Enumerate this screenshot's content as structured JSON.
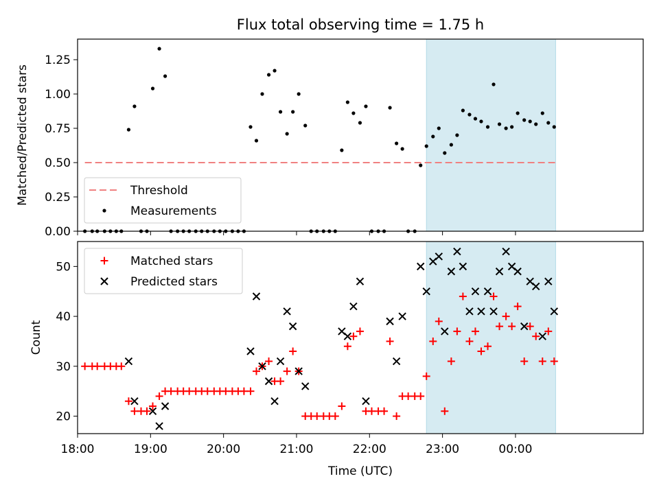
{
  "figure": {
    "title": "Flux total observing time = 1.75 h",
    "xlabel": "Time (UTC)",
    "highlight_color": "#add8e6"
  },
  "chart_data": [
    {
      "type": "scatter",
      "ylabel": "Matched/Predicted stars",
      "ylim": [
        0,
        1.4
      ],
      "yticks": [
        "0.00",
        "0.25",
        "0.50",
        "0.75",
        "1.00",
        "1.25"
      ],
      "ytick_values": [
        0,
        0.25,
        0.5,
        0.75,
        1.0,
        1.25
      ],
      "xlim": [
        18.0,
        25.75
      ],
      "legend_position": "lower-left",
      "threshold": {
        "name": "Threshold",
        "value": 0.5,
        "x": [
          18.1,
          24.55
        ],
        "color": "#f08080"
      },
      "series": [
        {
          "name": "Measurements",
          "color": "#000000",
          "x": [
            18.1,
            18.2,
            18.27,
            18.37,
            18.45,
            18.53,
            18.6,
            18.7,
            18.78,
            18.87,
            18.95,
            19.03,
            19.12,
            19.2,
            19.28,
            19.37,
            19.45,
            19.53,
            19.62,
            19.7,
            19.78,
            19.87,
            19.95,
            20.03,
            20.12,
            20.2,
            20.28,
            20.37,
            20.45,
            20.53,
            20.62,
            20.7,
            20.78,
            20.87,
            20.95,
            21.03,
            21.12,
            21.2,
            21.28,
            21.37,
            21.45,
            21.53,
            21.62,
            21.7,
            21.78,
            21.87,
            21.95,
            22.03,
            22.12,
            22.2,
            22.28,
            22.37,
            22.45,
            22.53,
            22.62,
            22.7,
            22.78,
            22.87,
            22.95,
            23.03,
            23.12,
            23.2,
            23.28,
            23.37,
            23.45,
            23.53,
            23.62,
            23.7,
            23.78,
            23.87,
            23.95,
            24.03,
            24.12,
            24.2,
            24.28,
            24.37,
            24.45,
            24.53
          ],
          "y": [
            0,
            0,
            0,
            0,
            0,
            0,
            0,
            0.74,
            0.91,
            0,
            0,
            1.04,
            1.33,
            1.13,
            0,
            0,
            0,
            0,
            0,
            0,
            0,
            0,
            0,
            0,
            0,
            0,
            0,
            0.76,
            0.66,
            1.0,
            1.14,
            1.17,
            0.87,
            0.71,
            0.87,
            1.0,
            0.77,
            0,
            0,
            0,
            0,
            0,
            0.59,
            0.94,
            0.86,
            0.79,
            0.91,
            0,
            0,
            0,
            0.9,
            0.64,
            0.6,
            0,
            0,
            0.48,
            0.62,
            0.69,
            0.75,
            0.57,
            0.63,
            0.7,
            0.88,
            0.85,
            0.82,
            0.8,
            0.76,
            1.07,
            0.78,
            0.75,
            0.76,
            0.86,
            0.81,
            0.8,
            0.78,
            0.86,
            0.79,
            0.76
          ]
        }
      ]
    },
    {
      "type": "scatter",
      "ylabel": "Count",
      "ylim": [
        16.5,
        55
      ],
      "yticks": [
        "20",
        "30",
        "40",
        "50"
      ],
      "ytick_values": [
        20,
        30,
        40,
        50
      ],
      "xlim": [
        18.0,
        25.75
      ],
      "xticks": [
        "18:00",
        "19:00",
        "20:00",
        "21:00",
        "22:00",
        "23:00",
        "00:00"
      ],
      "xtick_values": [
        18,
        19,
        20,
        21,
        22,
        23,
        24
      ],
      "legend_position": "upper-left",
      "series": [
        {
          "name": "Matched stars",
          "marker": "plus",
          "color": "#ff0000",
          "x": [
            18.1,
            18.2,
            18.27,
            18.37,
            18.45,
            18.53,
            18.6,
            18.7,
            18.78,
            18.87,
            18.95,
            19.03,
            19.12,
            19.2,
            19.28,
            19.37,
            19.45,
            19.53,
            19.62,
            19.7,
            19.78,
            19.87,
            19.95,
            20.03,
            20.12,
            20.2,
            20.28,
            20.37,
            20.45,
            20.53,
            20.62,
            20.7,
            20.78,
            20.87,
            20.95,
            21.03,
            21.12,
            21.2,
            21.28,
            21.37,
            21.45,
            21.53,
            21.62,
            21.7,
            21.78,
            21.87,
            21.95,
            22.03,
            22.12,
            22.2,
            22.28,
            22.37,
            22.45,
            22.53,
            22.62,
            22.7,
            22.78,
            22.87,
            22.95,
            23.03,
            23.12,
            23.2,
            23.28,
            23.37,
            23.45,
            23.53,
            23.62,
            23.7,
            23.78,
            23.87,
            23.95,
            24.03,
            24.12,
            24.2,
            24.28,
            24.37,
            24.45,
            24.53
          ],
          "y": [
            30,
            30,
            30,
            30,
            30,
            30,
            30,
            23,
            21,
            21,
            21,
            22,
            24,
            25,
            25,
            25,
            25,
            25,
            25,
            25,
            25,
            25,
            25,
            25,
            25,
            25,
            25,
            25,
            29,
            30,
            31,
            27,
            27,
            29,
            33,
            29,
            20,
            20,
            20,
            20,
            20,
            20,
            22,
            34,
            36,
            37,
            21,
            21,
            21,
            21,
            35,
            20,
            24,
            24,
            24,
            24,
            28,
            35,
            39,
            21,
            31,
            37,
            44,
            35,
            37,
            33,
            34,
            44,
            38,
            40,
            38,
            42,
            31,
            38,
            36,
            31,
            37,
            31
          ]
        },
        {
          "name": "Predicted stars",
          "marker": "x",
          "color": "#000000",
          "x": [
            18.7,
            18.78,
            19.03,
            19.12,
            19.2,
            20.37,
            20.45,
            20.53,
            20.62,
            20.7,
            20.78,
            20.87,
            20.95,
            21.03,
            21.12,
            21.62,
            21.7,
            21.78,
            21.87,
            21.95,
            22.28,
            22.37,
            22.45,
            22.7,
            22.78,
            22.87,
            22.95,
            23.03,
            23.12,
            23.2,
            23.28,
            23.37,
            23.45,
            23.53,
            23.62,
            23.7,
            23.78,
            23.87,
            23.95,
            24.03,
            24.12,
            24.2,
            24.28,
            24.37,
            24.45,
            24.53
          ],
          "y": [
            31,
            23,
            21,
            18,
            22,
            33,
            44,
            30,
            27,
            23,
            31,
            41,
            38,
            29,
            26,
            37,
            36,
            42,
            47,
            23,
            39,
            31,
            40,
            50,
            45,
            51,
            52,
            37,
            49,
            53,
            50,
            41,
            45,
            41,
            45,
            41,
            49,
            53,
            50,
            49,
            38,
            47,
            46,
            36,
            47,
            41
          ]
        }
      ]
    }
  ],
  "highlight_region": {
    "x": [
      22.78,
      24.55
    ]
  }
}
